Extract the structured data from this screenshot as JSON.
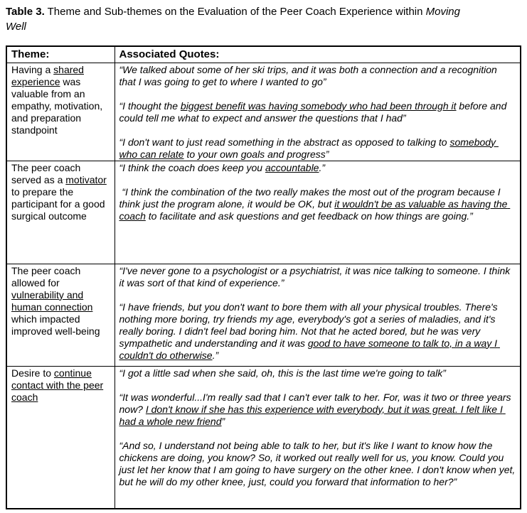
{
  "page": {
    "title": {
      "bold": "Table 3.",
      "text": " Theme and Sub-themes on the Evaluation of the Peer Coach Experience within ",
      "italic_line1": "Moving",
      "italic_line2": "Well"
    }
  },
  "table": {
    "headers": [
      "Theme:",
      "Associated Quotes:"
    ],
    "rows": [
      {
        "theme": [
          {
            "text": "Having a ",
            "u": false
          },
          {
            "text": "shared experience",
            "u": true
          },
          {
            "text": " was valuable from an empathy, motivation, and preparation standpoint",
            "u": false
          }
        ],
        "quotes": [
          [
            {
              "text": "“We talked about some of her ski trips, and it was both a connection and a recognition that I was going to get to where I wanted to go”",
              "u": false
            }
          ],
          [
            {
              "text": "“I thought the ",
              "u": false
            },
            {
              "text": "biggest benefit was having somebody who had been through it",
              "u": true
            },
            {
              "text": " before and could tell me what to expect and answer the questions that I had”",
              "u": false
            }
          ],
          [
            {
              "text": "“I don't want to just read something in the abstract as opposed to talking to ",
              "u": false
            },
            {
              "text": "somebody who can relate",
              "u": true
            },
            {
              "text": " to your own goals and progress”",
              "u": false
            }
          ]
        ]
      },
      {
        "theme": [
          {
            "text": "The peer coach served as a ",
            "u": false
          },
          {
            "text": "motivator",
            "u": true
          },
          {
            "text": " to prepare the participant for a good surgical outcome",
            "u": false
          }
        ],
        "quotes": [
          [
            {
              "text": "“I think the coach does keep you ",
              "u": false
            },
            {
              "text": "accountable",
              "u": true
            },
            {
              "text": ".”",
              "u": false
            }
          ],
          [
            {
              "text": " “I think the combination of the two really makes the most out of the program because I think just the program alone, it would be OK, but ",
              "u": false
            },
            {
              "text": "it wouldn't be as valuable as having the coach",
              "u": true
            },
            {
              "text": " to facilitate and ask questions and get feedback on how things are going.”",
              "u": false
            }
          ]
        ]
      },
      {
        "theme": [
          {
            "text": "The peer coach allowed for ",
            "u": false
          },
          {
            "text": "vulnerability and human connection",
            "u": true
          },
          {
            "text": " which impacted improved well-being",
            "u": false
          }
        ],
        "quotes": [
          [
            {
              "text": "“I've never gone to a psychologist or a psychiatrist, it was nice talking to someone. I think it was sort of that kind of experience.”",
              "u": false
            }
          ],
          [
            {
              "text": "“I have friends, but you don't want to bore them with all your physical troubles. There's nothing more boring, try friends my age, everybody's got a series of maladies, and it's really boring. I didn't feel bad boring him. Not that he acted bored, but he was very sympathetic and understanding and it was ",
              "u": false
            },
            {
              "text": "good to have someone to talk to, in a way I couldn't do otherwise",
              "u": true
            },
            {
              "text": ".”",
              "u": false
            }
          ]
        ]
      },
      {
        "theme": [
          {
            "text": "Desire to ",
            "u": false
          },
          {
            "text": "continue contact with the peer coach",
            "u": true
          }
        ],
        "quotes": [
          [
            {
              "text": "“I got a little sad when she said, oh, this is the last time we're going to talk”",
              "u": false
            }
          ],
          [
            {
              "text": "“It was wonderful...I'm really sad that I can't ever talk to her. For, was it two or three years now? ",
              "u": false
            },
            {
              "text": "I don't know if she has this experience with everybody, but it was great. I felt like I had a whole new friend",
              "u": true
            },
            {
              "text": "”",
              "u": false
            }
          ],
          [
            {
              "text": "“And so, I understand not being able to talk to her, but it's like I want to know how the chickens are doing, you know? So, it worked out really well for us, you know. Could you just let her know that I am going to have surgery on the other knee. I don't know when yet, but he will do my other knee, just, could you forward that information to her?”",
              "u": false
            }
          ]
        ]
      }
    ]
  }
}
